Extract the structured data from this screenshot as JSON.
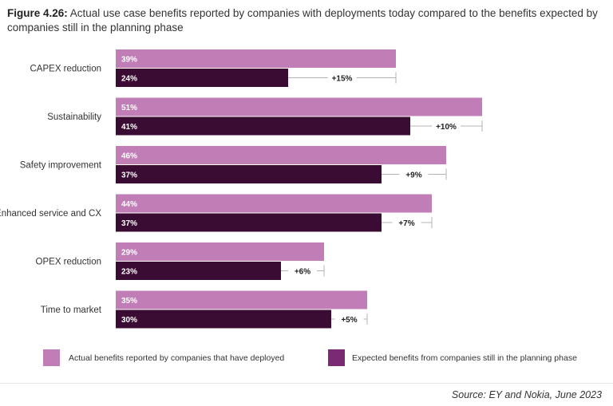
{
  "title": {
    "lead": "Figure 4.26:",
    "text": " Actual use case benefits reported by companies with deployments today compared to the benefits expected by companies still in the planning phase"
  },
  "source": "Source: EY and Nokia, June 2023",
  "colors": {
    "actual": "#c07db6",
    "expected": "#3b0c33",
    "diff_line": "#b3b3b3",
    "legend_expected": "#7a2a73"
  },
  "chart_data": {
    "type": "bar",
    "orientation": "horizontal",
    "categories": [
      "CAPEX reduction",
      "Sustainability",
      "Safety improvement",
      "Enhanced service and CX",
      "OPEX reduction",
      "Time to market"
    ],
    "series": [
      {
        "name": "Actual benefits reported by companies that have deployed",
        "values": [
          39,
          51,
          46,
          44,
          29,
          35
        ],
        "labels": [
          "39%",
          "51%",
          "46%",
          "44%",
          "29%",
          "35%"
        ]
      },
      {
        "name": "Expected benefits from companies still in the planning phase",
        "values": [
          24,
          41,
          37,
          37,
          23,
          30
        ],
        "labels": [
          "24%",
          "41%",
          "37%",
          "37%",
          "23%",
          "30%"
        ]
      }
    ],
    "differences": [
      "+15%",
      "+10%",
      "+9%",
      "+7%",
      "+6%",
      "+5%"
    ],
    "xlim": [
      0,
      100
    ],
    "grid": false,
    "legend_position": "bottom"
  }
}
